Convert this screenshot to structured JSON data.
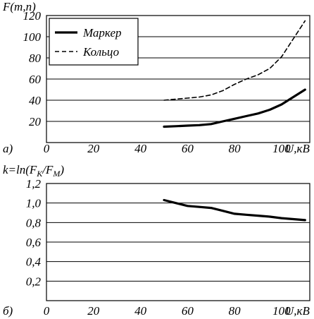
{
  "chart_data": [
    {
      "type": "line",
      "panel_label": "а)",
      "ylabel": "F(m,n)",
      "xlabel": "U,кВ",
      "xlim": [
        0,
        112
      ],
      "ylim": [
        0,
        120
      ],
      "x_ticks": [
        "0",
        "20",
        "40",
        "60",
        "80",
        "100"
      ],
      "y_ticks": [
        "20",
        "40",
        "60",
        "80",
        "100",
        "120"
      ],
      "grid": "horizontal",
      "legend": "top-left",
      "series": [
        {
          "name": "Маркер",
          "style": "solid",
          "x": [
            50,
            55,
            60,
            65,
            70,
            75,
            80,
            85,
            90,
            95,
            100,
            105,
            110
          ],
          "y": [
            15,
            15.5,
            16,
            16.5,
            17.5,
            20,
            22.5,
            25,
            27.5,
            31,
            36,
            43,
            50
          ]
        },
        {
          "name": "Кольцо",
          "style": "dashed",
          "x": [
            50,
            55,
            60,
            65,
            70,
            75,
            80,
            85,
            90,
            95,
            100,
            105,
            110
          ],
          "y": [
            40,
            41,
            42,
            43,
            45,
            49,
            55,
            60,
            64,
            70,
            81,
            98,
            115
          ]
        }
      ]
    },
    {
      "type": "line",
      "panel_label": "б)",
      "ylabel": "k=ln(F_K/F_M)",
      "ylabel_parts": {
        "pre": "k=ln(F",
        "sub1": "K",
        "mid": "/F",
        "sub2": "M",
        "post": ")"
      },
      "xlabel": "U,кВ",
      "xlim": [
        0,
        112
      ],
      "ylim": [
        0,
        1.2
      ],
      "x_ticks": [
        "0",
        "20",
        "40",
        "60",
        "80",
        "100"
      ],
      "y_ticks": [
        "0,2",
        "0,4",
        "0,6",
        "0,8",
        "1,0",
        "1,2"
      ],
      "grid": "horizontal",
      "series": [
        {
          "style": "solid",
          "x": [
            50,
            55,
            60,
            65,
            70,
            75,
            80,
            85,
            90,
            95,
            100,
            105,
            110
          ],
          "y": [
            1.03,
            1.0,
            0.97,
            0.96,
            0.95,
            0.92,
            0.89,
            0.88,
            0.87,
            0.86,
            0.845,
            0.835,
            0.825
          ]
        }
      ]
    }
  ]
}
